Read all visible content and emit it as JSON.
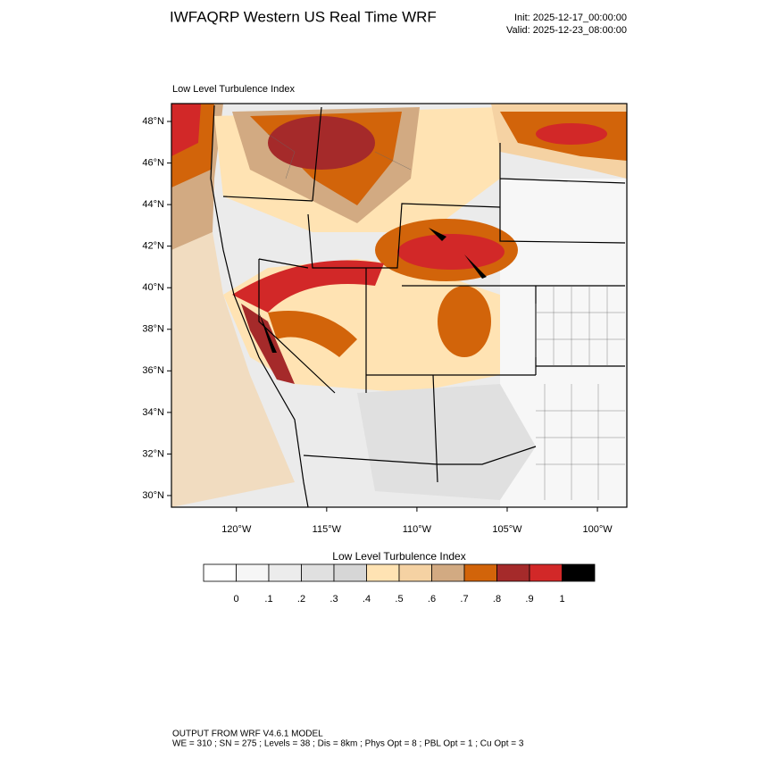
{
  "header": {
    "title": "IWFAQRP Western US Real Time WRF",
    "init": "Init: 2025-12-17_00:00:00",
    "valid": "Valid: 2025-12-23_08:00:00"
  },
  "map": {
    "subtitle": "Low Level Turbulence Index",
    "lonlim": [
      -123.6,
      -98.37
    ],
    "latlim": [
      29.44,
      48.86
    ],
    "lat_ticks": [
      {
        "value": 30,
        "label": "30°N"
      },
      {
        "value": 32,
        "label": "32°N"
      },
      {
        "value": 34,
        "label": "34°N"
      },
      {
        "value": 36,
        "label": "36°N"
      },
      {
        "value": 38,
        "label": "38°N"
      },
      {
        "value": 40,
        "label": "40°N"
      },
      {
        "value": 42,
        "label": "42°N"
      },
      {
        "value": 44,
        "label": "44°N"
      },
      {
        "value": 46,
        "label": "46°N"
      },
      {
        "value": 48,
        "label": "48°N"
      }
    ],
    "lon_ticks": [
      {
        "value": -120,
        "label": "120°W"
      },
      {
        "value": -115,
        "label": "115°W"
      },
      {
        "value": -110,
        "label": "110°W"
      },
      {
        "value": -105,
        "label": "105°W"
      },
      {
        "value": -100,
        "label": "100°W"
      }
    ]
  },
  "colorbar": {
    "title": "Low Level Turbulence Index",
    "colors": [
      "#ffffff",
      "#f6f6f6",
      "#ececec",
      "#e0e0e0",
      "#d6d6d6",
      "#ffe3b3",
      "#f5d2a3",
      "#d2aa82",
      "#d2640a",
      "#a52a2a",
      "#d22828",
      "#000000"
    ],
    "ticks": [
      0,
      {
        "value": 0.1,
        "label": ".1"
      },
      {
        "value": 0.2,
        "label": ".2"
      },
      {
        "value": 0.3,
        "label": ".3"
      },
      {
        "value": 0.4,
        "label": ".4"
      },
      {
        "value": 0.5,
        "label": ".5"
      },
      {
        "value": 0.6,
        "label": ".6"
      },
      {
        "value": 0.7,
        "label": ".7"
      },
      {
        "value": 0.8,
        "label": ".8"
      },
      {
        "value": 0.9,
        "label": ".9"
      },
      1
    ]
  },
  "footer": {
    "line1": "OUTPUT FROM WRF V4.6.1 MODEL",
    "line2": "WE = 310 ; SN = 275 ; Levels = 38 ; Dis = 8km ; Phys Opt = 8 ; PBL Opt = 1 ; Cu Opt = 3"
  }
}
